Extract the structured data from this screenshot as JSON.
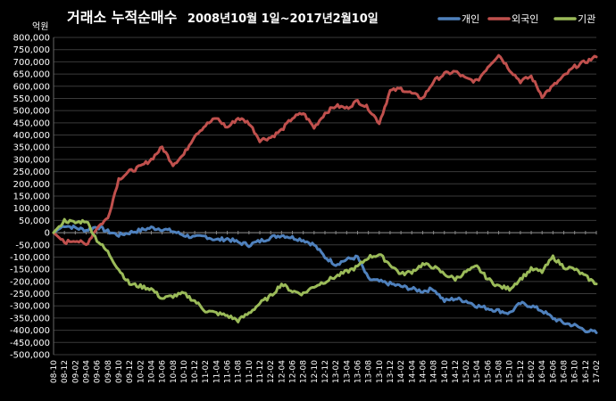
{
  "chart_data": {
    "type": "line",
    "title_main": "거래소 누적순매수",
    "title_sub": "2008년10월 1일~2017년2월10일",
    "unit_label": "억원",
    "ylim": [
      -500000,
      800000
    ],
    "y_ticks": [
      800000,
      750000,
      700000,
      650000,
      600000,
      550000,
      500000,
      450000,
      400000,
      350000,
      300000,
      250000,
      200000,
      150000,
      100000,
      50000,
      0,
      -50000,
      -100000,
      -150000,
      -200000,
      -250000,
      -300000,
      -350000,
      -400000,
      -450000,
      -500000
    ],
    "y_tick_labels": [
      "800,000",
      "750,000",
      "700,000",
      "650,000",
      "600,000",
      "550,000",
      "500,000",
      "450,000",
      "400,000",
      "350,000",
      "300,000",
      "250,000",
      "200,000",
      "150,000",
      "100,000",
      "50,000",
      "0",
      "-50,000",
      "-100,000",
      "-150,000",
      "-200,000",
      "-250,000",
      "-300,000",
      "-350,000",
      "-400,000",
      "-450,000",
      "-500,000"
    ],
    "x_tick_labels": [
      "08-10",
      "08-12",
      "09-02",
      "09-04",
      "09-06",
      "09-08",
      "09-10",
      "09-12",
      "10-02",
      "10-04",
      "10-06",
      "10-08",
      "10-10",
      "10-12",
      "11-02",
      "11-04",
      "11-06",
      "11-08",
      "11-10",
      "11-12",
      "12-02",
      "12-04",
      "12-06",
      "12-08",
      "12-10",
      "12-12",
      "13-02",
      "13-04",
      "13-06",
      "13-08",
      "13-10",
      "13-12",
      "14-02",
      "14-04",
      "14-06",
      "14-08",
      "14-10",
      "14-12",
      "15-02",
      "15-04",
      "15-06",
      "15-08",
      "15-10",
      "15-12",
      "16-02",
      "16-04",
      "16-06",
      "16-08",
      "16-10",
      "16-12",
      "17-02"
    ],
    "grid": true,
    "legend_position": "top-right",
    "series": [
      {
        "name": "개인",
        "color": "#4f81bd",
        "values": [
          0,
          30000,
          20000,
          10000,
          25000,
          5000,
          -10000,
          0,
          10000,
          20000,
          15000,
          5000,
          -10000,
          -20000,
          -15000,
          -30000,
          -25000,
          -40000,
          -50000,
          -35000,
          -20000,
          -10000,
          -20000,
          -30000,
          -50000,
          -100000,
          -130000,
          -110000,
          -100000,
          -190000,
          -200000,
          -210000,
          -220000,
          -230000,
          -240000,
          -230000,
          -280000,
          -270000,
          -280000,
          -300000,
          -310000,
          -320000,
          -330000,
          -290000,
          -300000,
          -320000,
          -350000,
          -370000,
          -380000,
          -400000,
          -410000
        ]
      },
      {
        "name": "외국인",
        "color": "#c0504d",
        "values": [
          0,
          -40000,
          -30000,
          -50000,
          20000,
          60000,
          220000,
          250000,
          270000,
          300000,
          350000,
          280000,
          320000,
          400000,
          440000,
          470000,
          430000,
          470000,
          450000,
          380000,
          390000,
          420000,
          470000,
          490000,
          430000,
          490000,
          520000,
          510000,
          540000,
          510000,
          450000,
          580000,
          590000,
          570000,
          550000,
          620000,
          650000,
          660000,
          630000,
          620000,
          680000,
          730000,
          670000,
          620000,
          640000,
          560000,
          600000,
          640000,
          680000,
          700000,
          720000
        ]
      },
      {
        "name": "기관",
        "color": "#9bbb59",
        "values": [
          0,
          50000,
          40000,
          50000,
          -30000,
          -80000,
          -150000,
          -210000,
          -220000,
          -230000,
          -270000,
          -260000,
          -250000,
          -280000,
          -320000,
          -330000,
          -340000,
          -360000,
          -330000,
          -290000,
          -260000,
          -210000,
          -240000,
          -250000,
          -220000,
          -200000,
          -180000,
          -160000,
          -140000,
          -100000,
          -90000,
          -130000,
          -170000,
          -160000,
          -130000,
          -140000,
          -170000,
          -190000,
          -160000,
          -140000,
          -190000,
          -220000,
          -230000,
          -190000,
          -150000,
          -160000,
          -100000,
          -140000,
          -150000,
          -180000,
          -210000
        ]
      }
    ]
  }
}
